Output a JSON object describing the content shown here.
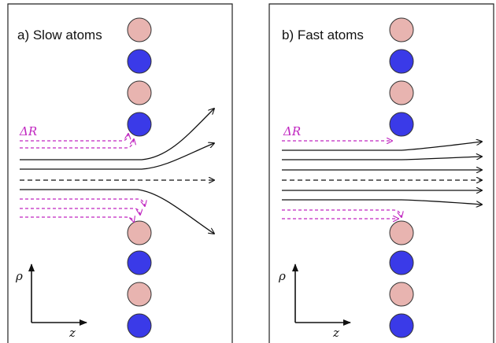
{
  "colors": {
    "atom_pink": "#e8b4b0",
    "atom_blue": "#3a3ae8",
    "atom_stroke": "#333333",
    "trajectory": "#111111",
    "delta_r": "#c026c0"
  },
  "panels": [
    {
      "title": "a) Slow atoms",
      "delta_r_label": "ΔR",
      "rho_label": "ρ",
      "z_label": "z"
    },
    {
      "title": "b) Fast atoms",
      "delta_r_label": "ΔR",
      "rho_label": "ρ",
      "z_label": "z"
    }
  ],
  "atom_column": [
    "pink",
    "blue",
    "pink",
    "blue",
    "pink",
    "blue",
    "pink",
    "blue"
  ],
  "icons": {
    "atom": "filled-circle",
    "trajectory_arrow": "arrow-right",
    "axis_arrow": "arrow"
  }
}
